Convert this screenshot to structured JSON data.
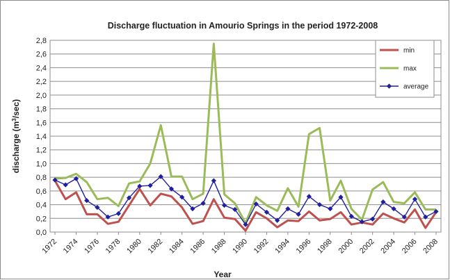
{
  "chart_data": {
    "type": "line",
    "title": "Discharge fluctuation in Amourio Springs in the period 1972-2008",
    "xlabel": "Year",
    "ylabel": "discharge (m",
    "ylabel_sup": "3",
    "ylabel_suffix": "/sec)",
    "ylim": [
      0,
      2.8
    ],
    "y_ticks": [
      "0,0",
      "0,2",
      "0,4",
      "0,6",
      "0,8",
      "1,0",
      "1,2",
      "1,4",
      "1,6",
      "1,8",
      "2,0",
      "2,2",
      "2,4",
      "2,6",
      "2,8"
    ],
    "x_tick_labels": [
      "1972",
      "1974",
      "1976",
      "1978",
      "1980",
      "1982",
      "1984",
      "1986",
      "1988",
      "1990",
      "1992",
      "1994",
      "1996",
      "1998",
      "2000",
      "2002",
      "2004",
      "2006",
      "2008"
    ],
    "grid": true,
    "legend_position": "top-right",
    "x": [
      1972,
      1973,
      1974,
      1975,
      1976,
      1977,
      1978,
      1979,
      1980,
      1981,
      1982,
      1983,
      1984,
      1985,
      1986,
      1987,
      1988,
      1989,
      1990,
      1991,
      1992,
      1993,
      1994,
      1995,
      1996,
      1997,
      1998,
      1999,
      2000,
      2001,
      2002,
      2003,
      2004,
      2005,
      2006,
      2007,
      2008
    ],
    "series": [
      {
        "name": "min",
        "color": "#c0504d",
        "values": [
          0.75,
          0.48,
          0.58,
          0.26,
          0.26,
          0.12,
          0.15,
          0.39,
          0.63,
          0.39,
          0.56,
          0.52,
          0.36,
          0.12,
          0.16,
          0.48,
          0.21,
          0.19,
          0.02,
          0.29,
          0.2,
          0.07,
          0.17,
          0.16,
          0.3,
          0.17,
          0.19,
          0.29,
          0.11,
          0.14,
          0.11,
          0.27,
          0.2,
          0.14,
          0.33,
          0.06,
          0.29
        ]
      },
      {
        "name": "max",
        "color": "#9bbb59",
        "values": [
          0.78,
          0.79,
          0.85,
          0.73,
          0.48,
          0.5,
          0.38,
          0.71,
          0.74,
          1.0,
          1.56,
          0.81,
          0.81,
          0.48,
          0.56,
          2.75,
          0.55,
          0.42,
          0.13,
          0.51,
          0.39,
          0.31,
          0.64,
          0.37,
          1.43,
          1.52,
          0.46,
          0.75,
          0.34,
          0.18,
          0.62,
          0.73,
          0.44,
          0.42,
          0.58,
          0.33,
          0.33
        ]
      },
      {
        "name": "average",
        "color": "#1f1fa0",
        "values": [
          0.76,
          0.69,
          0.78,
          0.46,
          0.36,
          0.22,
          0.27,
          0.5,
          0.67,
          0.68,
          0.81,
          0.63,
          0.51,
          0.34,
          0.42,
          0.75,
          0.39,
          0.33,
          0.11,
          0.41,
          0.29,
          0.17,
          0.34,
          0.26,
          0.52,
          0.4,
          0.34,
          0.51,
          0.23,
          0.15,
          0.19,
          0.44,
          0.34,
          0.22,
          0.48,
          0.22,
          0.3
        ]
      }
    ]
  }
}
